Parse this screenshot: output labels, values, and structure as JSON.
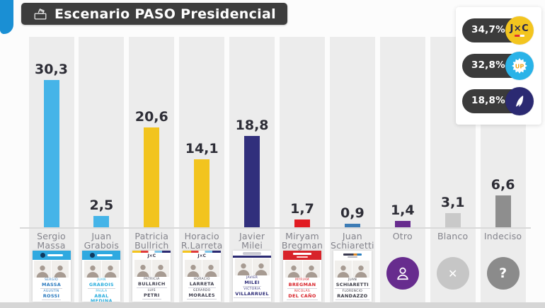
{
  "header": {
    "title": "Escenario PASO Presidencial"
  },
  "legend": {
    "items": [
      {
        "pct": "34,7%",
        "logo": "jxc-logo",
        "logo_text": "J×C",
        "circle_color": "#f3c51f"
      },
      {
        "pct": "32,8%",
        "logo": "up-sun-logo",
        "logo_text": "UP",
        "circle_color": "#2ab3e8"
      },
      {
        "pct": "18,8%",
        "logo": "feather-logo",
        "logo_text": "",
        "circle_color": "#2b2a72"
      }
    ]
  },
  "chart_data": {
    "type": "bar",
    "title": "Escenario PASO Presidencial",
    "categories": [
      "Sergio Massa",
      "Juan Grabois",
      "Patricia Bullrich",
      "Horacio R.Larreta",
      "Javier Milei",
      "Miryam Bregman",
      "Juan Schiaretti",
      "Otro",
      "Blanco",
      "Indeciso"
    ],
    "values": [
      30.3,
      2.5,
      20.6,
      14.1,
      18.8,
      1.7,
      0.9,
      1.4,
      3.1,
      6.6
    ],
    "value_labels": [
      "30,3",
      "2,5",
      "20,6",
      "14,1",
      "18,8",
      "1,7",
      "0,9",
      "1,4",
      "3,1",
      "6,6"
    ],
    "bar_colors": [
      "#45b4e8",
      "#45b4e8",
      "#f2c41e",
      "#f2c41e",
      "#312f7c",
      "#e11b22",
      "#3d7cb5",
      "#672c8e",
      "#c9c9c9",
      "#8e8e8e"
    ],
    "ylim": [
      0,
      33
    ],
    "grid": false,
    "legend": {
      "position": "top-right",
      "entries": [
        {
          "label": "34,7%",
          "logo": "jxc-logo"
        },
        {
          "label": "32,8%",
          "logo": "up-sun-logo"
        },
        {
          "label": "18,8%",
          "logo": "feather-logo"
        }
      ]
    }
  },
  "columns": [
    {
      "id": "massa",
      "label_lines": [
        "Sergio",
        "Massa"
      ],
      "value": 30.3,
      "value_label": "30,3",
      "color": "#45b4e8",
      "card": {
        "kind": "ticket",
        "header": "up",
        "name_color": "#2878be",
        "people": [
          {
            "first": "SERGIO",
            "last": "MASSA"
          },
          {
            "first": "AGUSTÍN",
            "last": "ROSSI"
          }
        ]
      }
    },
    {
      "id": "grabois",
      "label_lines": [
        "Juan",
        "Grabois"
      ],
      "value": 2.5,
      "value_label": "2,5",
      "color": "#45b4e8",
      "card": {
        "kind": "ticket",
        "header": "up",
        "name_color": "#2aaede",
        "people": [
          {
            "first": "JUAN",
            "last": "GRABOIS"
          },
          {
            "first": "PAULA",
            "last": "ABAL MEDINA"
          }
        ]
      }
    },
    {
      "id": "bullrich",
      "label_lines": [
        "Patricia",
        "Bullrich"
      ],
      "value": 20.6,
      "value_label": "20,6",
      "color": "#f2c41e",
      "card": {
        "kind": "ticket",
        "header": "jxc",
        "name_color": "#40404f",
        "people": [
          {
            "first": "PATRICIA",
            "last": "BULLRICH"
          },
          {
            "first": "LUIS",
            "last": "PETRI"
          }
        ]
      }
    },
    {
      "id": "larreta",
      "label_lines": [
        "Horacio",
        "R.Larreta"
      ],
      "value": 14.1,
      "value_label": "14,1",
      "color": "#f2c41e",
      "card": {
        "kind": "ticket",
        "header": "jxc",
        "name_color": "#40404f",
        "people": [
          {
            "first": "HORACIO",
            "last": "LARRETA"
          },
          {
            "first": "GERARDO",
            "last": "MORALES"
          }
        ]
      }
    },
    {
      "id": "milei",
      "label_lines": [
        "Javier",
        "Milei"
      ],
      "value": 18.8,
      "value_label": "18,8",
      "color": "#312f7c",
      "card": {
        "kind": "ticket",
        "header": "lla",
        "name_color": "#2e2d78",
        "people": [
          {
            "first": "JAVIER",
            "last": "MILEI"
          },
          {
            "first": "VICTORIA",
            "last": "VILLARRUEL"
          }
        ]
      }
    },
    {
      "id": "bregman",
      "label_lines": [
        "Miryam",
        "Bregman"
      ],
      "value": 1.7,
      "value_label": "1,7",
      "color": "#e11b22",
      "card": {
        "kind": "ticket",
        "header": "fit",
        "name_color": "#d8232a",
        "people": [
          {
            "first": "MYRIAM",
            "last": "BREGMAN"
          },
          {
            "first": "NICOLÁS",
            "last": "DEL CAÑO"
          }
        ]
      }
    },
    {
      "id": "schiaretti",
      "label_lines": [
        "Juan",
        "Schiaretti"
      ],
      "value": 0.9,
      "value_label": "0,9",
      "color": "#3d7cb5",
      "card": {
        "kind": "ticket",
        "header": "hacemos",
        "name_color": "#3a3a44",
        "people": [
          {
            "first": "JUAN",
            "last": "SCHIARETTI"
          },
          {
            "first": "FLORENCIO",
            "last": "RANDAZZO"
          }
        ]
      }
    },
    {
      "id": "otro",
      "label_lines": [
        "Otro"
      ],
      "value": 1.4,
      "value_label": "1,4",
      "color": "#672c8e",
      "card": {
        "kind": "circle",
        "circle_color": "#672c8e",
        "icon": "person-icon",
        "icon_text": ""
      }
    },
    {
      "id": "blanco",
      "label_lines": [
        "Blanco"
      ],
      "value": 3.1,
      "value_label": "3,1",
      "color": "#c9c9c9",
      "card": {
        "kind": "circle",
        "circle_color": "#c6c6c6",
        "icon": "x-icon",
        "icon_text": "✕"
      }
    },
    {
      "id": "indeciso",
      "label_lines": [
        "Indeciso"
      ],
      "value": 6.6,
      "value_label": "6,6",
      "color": "#8e8e8e",
      "card": {
        "kind": "circle",
        "circle_color": "#8b8b8b",
        "icon": "question-icon",
        "icon_text": "?"
      }
    }
  ]
}
